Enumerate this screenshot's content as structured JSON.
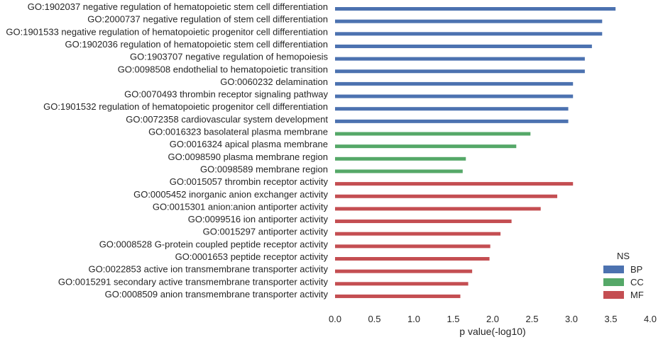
{
  "chart_data": {
    "type": "bar",
    "orientation": "horizontal",
    "xlabel": "p value(-log10)",
    "xlim": [
      0.0,
      4.0
    ],
    "xticks": [
      "0.0",
      "0.5",
      "1.0",
      "1.5",
      "2.0",
      "2.5",
      "3.0",
      "3.5",
      "4.0"
    ],
    "grid": false,
    "legend": {
      "title": "NS",
      "placement": "lower-right",
      "entries": [
        {
          "name": "BP",
          "color": "#4C72B0"
        },
        {
          "name": "CC",
          "color": "#55A868"
        },
        {
          "name": "MF",
          "color": "#C44E52"
        }
      ]
    },
    "bars": [
      {
        "label": "GO:1902037 negative regulation of hematopoietic stem cell differentiation",
        "value": 3.56,
        "group": "BP"
      },
      {
        "label": "GO:2000737 negative regulation of stem cell differentiation",
        "value": 3.39,
        "group": "BP"
      },
      {
        "label": "GO:1901533 negative regulation of hematopoietic progenitor cell differentiation",
        "value": 3.39,
        "group": "BP"
      },
      {
        "label": "GO:1902036 regulation of hematopoietic stem cell differentiation",
        "value": 3.26,
        "group": "BP"
      },
      {
        "label": "GO:1903707 negative regulation of hemopoiesis",
        "value": 3.17,
        "group": "BP"
      },
      {
        "label": "GO:0098508 endothelial to hematopoietic transition",
        "value": 3.17,
        "group": "BP"
      },
      {
        "label": "GO:0060232 delamination",
        "value": 3.02,
        "group": "BP"
      },
      {
        "label": "GO:0070493 thrombin receptor signaling pathway",
        "value": 3.02,
        "group": "BP"
      },
      {
        "label": "GO:1901532 regulation of hematopoietic progenitor cell differentiation",
        "value": 2.96,
        "group": "BP"
      },
      {
        "label": "GO:0072358 cardiovascular system development",
        "value": 2.96,
        "group": "BP"
      },
      {
        "label": "GO:0016323 basolateral plasma membrane",
        "value": 2.48,
        "group": "CC"
      },
      {
        "label": "GO:0016324 apical plasma membrane",
        "value": 2.3,
        "group": "CC"
      },
      {
        "label": "GO:0098590 plasma membrane region",
        "value": 1.66,
        "group": "CC"
      },
      {
        "label": "GO:0098589 membrane region",
        "value": 1.62,
        "group": "CC"
      },
      {
        "label": "GO:0015057 thrombin receptor activity",
        "value": 3.02,
        "group": "MF"
      },
      {
        "label": "GO:0005452 inorganic anion exchanger activity",
        "value": 2.82,
        "group": "MF"
      },
      {
        "label": "GO:0015301 anion:anion antiporter activity",
        "value": 2.61,
        "group": "MF"
      },
      {
        "label": "GO:0099516 ion antiporter activity",
        "value": 2.24,
        "group": "MF"
      },
      {
        "label": "GO:0015297 antiporter activity",
        "value": 2.1,
        "group": "MF"
      },
      {
        "label": "GO:0008528 G-protein coupled peptide receptor activity",
        "value": 1.97,
        "group": "MF"
      },
      {
        "label": "GO:0001653 peptide receptor activity",
        "value": 1.96,
        "group": "MF"
      },
      {
        "label": "GO:0022853 active ion transmembrane transporter activity",
        "value": 1.74,
        "group": "MF"
      },
      {
        "label": "GO:0015291 secondary active transmembrane transporter activity",
        "value": 1.69,
        "group": "MF"
      },
      {
        "label": "GO:0008509 anion transmembrane transporter activity",
        "value": 1.59,
        "group": "MF"
      }
    ]
  }
}
